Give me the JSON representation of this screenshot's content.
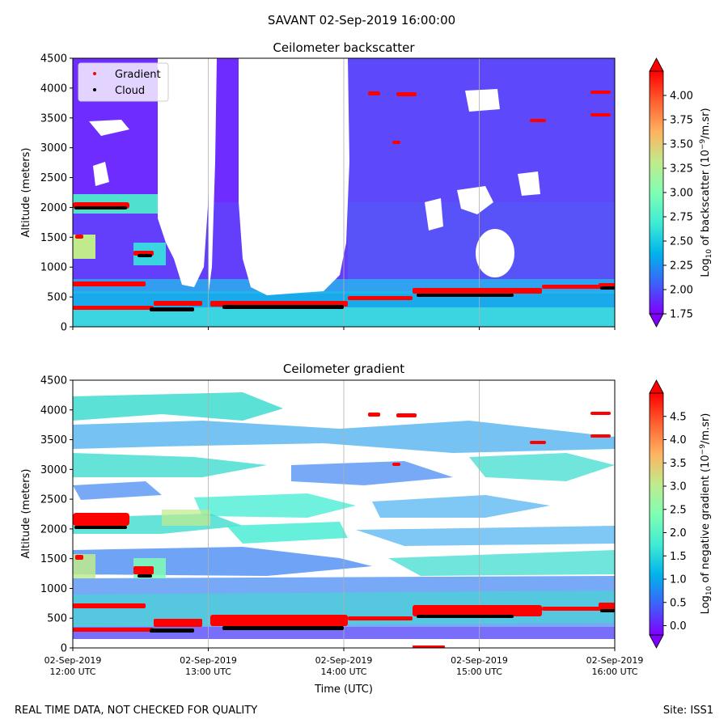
{
  "suptitle": "SAVANT 02-Sep-2019 16:00:00",
  "footer_left": "REAL TIME DATA, NOT CHECKED FOR QUALITY",
  "footer_right": "Site: ISS1",
  "colors": {
    "gradient_marker": "#ff0000",
    "cloud_marker": "#000000",
    "gridline": "#b0b0b0",
    "colormap": [
      "#7f00ff",
      "#3e60fa",
      "#00b4eb",
      "#40ecd3",
      "#80feb3",
      "#c0eb8c",
      "#ffb360",
      "#ff6030",
      "#ff0000"
    ]
  },
  "chart_data": [
    {
      "type": "heatmap",
      "title": "Ceilometer backscatter",
      "ylabel": "Altitude (meters)",
      "xlabel": "",
      "x_range": [
        "02-Sep-2019 12:00 UTC",
        "02-Sep-2019 16:00 UTC"
      ],
      "ylim": [
        0,
        4500
      ],
      "y_ticks": [
        "0",
        "500",
        "1000",
        "1500",
        "2000",
        "2500",
        "3000",
        "3500",
        "4000",
        "4500"
      ],
      "vertical_grid": true,
      "legend": {
        "placement": "top-left",
        "entries": [
          "Gradient",
          "Cloud"
        ]
      },
      "colorbar": {
        "label": "Log10 of backscatter (10^-9/m.sr)",
        "label_parts": {
          "pre": "Log",
          "sub": "10",
          "mid": " of backscatter (10",
          "sup": "−9",
          "post": "/m.sr)"
        },
        "range": [
          1.75,
          4.25
        ],
        "ticks": [
          "1.75",
          "2.00",
          "2.25",
          "2.50",
          "2.75",
          "3.00",
          "3.25",
          "3.50",
          "3.75",
          "4.00"
        ],
        "extend": "both"
      }
    },
    {
      "type": "heatmap",
      "title": "Ceilometer gradient",
      "ylabel": "Altitude (meters)",
      "xlabel": "Time (UTC)",
      "x_range": [
        "02-Sep-2019 12:00 UTC",
        "02-Sep-2019 16:00 UTC"
      ],
      "x_ticks": [
        {
          "date": "02-Sep-2019",
          "time": "12:00 UTC"
        },
        {
          "date": "02-Sep-2019",
          "time": "13:00 UTC"
        },
        {
          "date": "02-Sep-2019",
          "time": "14:00 UTC"
        },
        {
          "date": "02-Sep-2019",
          "time": "15:00 UTC"
        },
        {
          "date": "02-Sep-2019",
          "time": "16:00 UTC"
        }
      ],
      "ylim": [
        0,
        4500
      ],
      "y_ticks": [
        "0",
        "500",
        "1000",
        "1500",
        "2000",
        "2500",
        "3000",
        "3500",
        "4000",
        "4500"
      ],
      "vertical_grid": true,
      "colorbar": {
        "label": "Log10 of negative gradient (10^-9/m.sr)",
        "label_parts": {
          "pre": "Log",
          "sub": "10",
          "mid": " of negative gradient (10",
          "sup": "−9",
          "post": "/m.sr)"
        },
        "range": [
          -0.2,
          5.0
        ],
        "ticks": [
          "0.0",
          "0.5",
          "1.0",
          "1.5",
          "2.0",
          "2.5",
          "3.0",
          "3.5",
          "4.0",
          "4.5"
        ],
        "extend": "both"
      }
    }
  ]
}
